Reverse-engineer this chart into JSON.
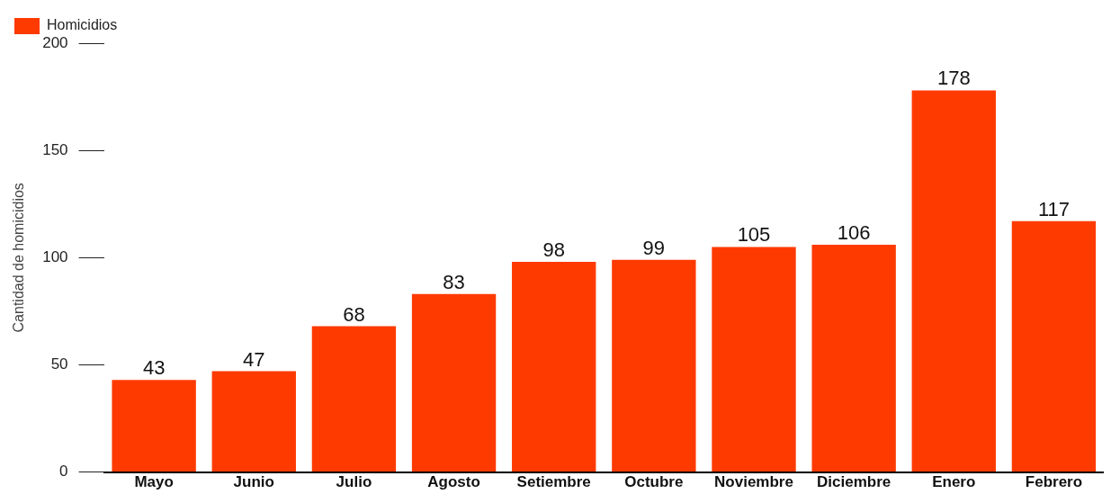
{
  "chart_data": {
    "type": "bar",
    "ylabel": "Cantidad de homicidios",
    "categories": [
      "Mayo",
      "Junio",
      "Julio",
      "Agosto",
      "Setiembre",
      "Octubre",
      "Noviembre",
      "Diciembre",
      "Enero",
      "Febrero"
    ],
    "series": [
      {
        "name": "Homicidios",
        "color": "#ff3a00",
        "values": [
          43,
          47,
          68,
          83,
          98,
          99,
          105,
          106,
          178,
          117
        ]
      }
    ],
    "ylim": [
      0,
      200
    ],
    "yticks": [
      0,
      50,
      100,
      150,
      200
    ],
    "grid": false,
    "legend": "top left",
    "data_labels": true
  }
}
